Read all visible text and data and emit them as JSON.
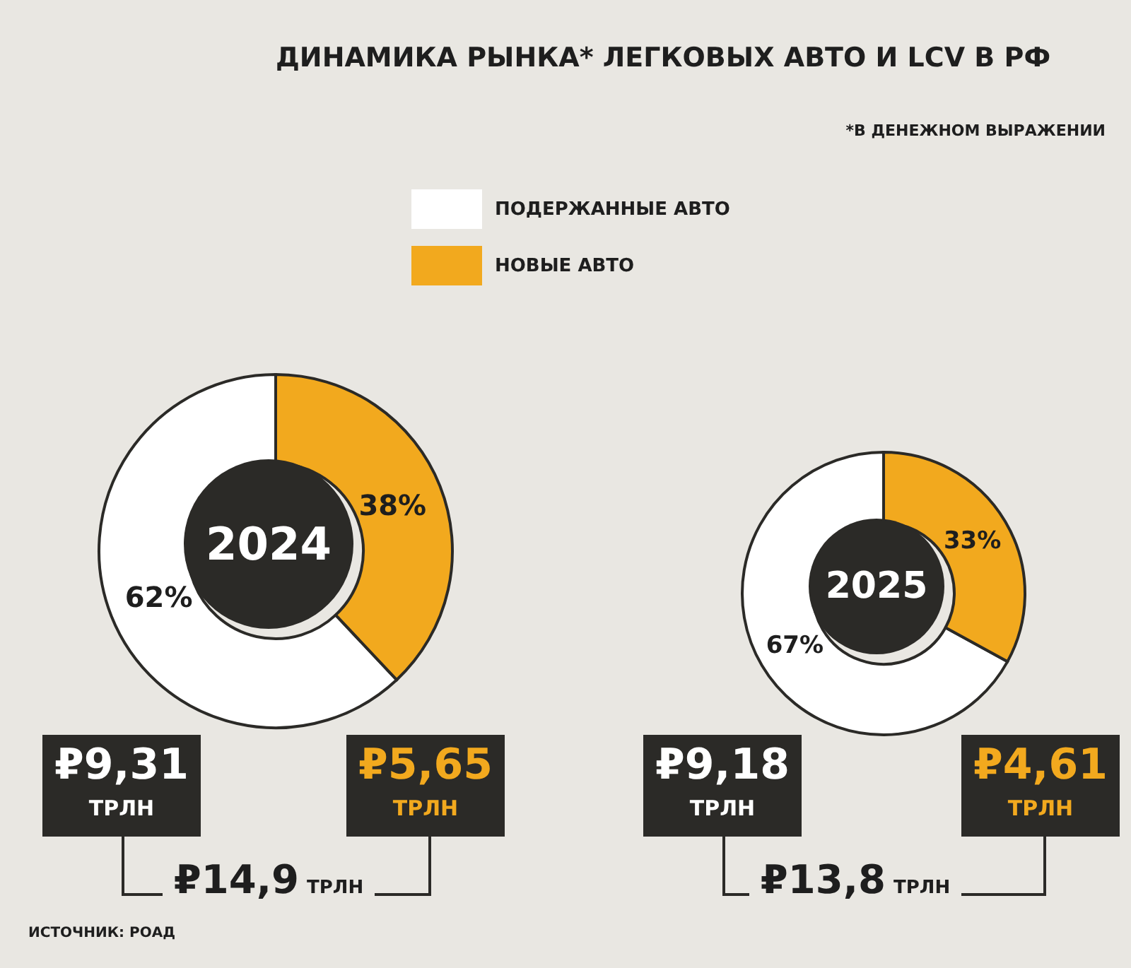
{
  "chart_data": [
    {
      "type": "donut",
      "title": "ДИНАМИКА РЫНКА* ЛЕГКОВЫХ АВТО И LCV В РФ",
      "subtitle": "*В ДЕНЕЖНОМ ВЫРАЖЕНИИ",
      "categories": [
        "ПОДЕРЖАННЫЕ АВТО",
        "НОВЫЕ АВТО"
      ],
      "values": [
        62,
        38
      ],
      "value_labels": [
        "62%",
        "38%"
      ],
      "colors": [
        "#ffffff",
        "#f2a91e"
      ],
      "legend": "top",
      "annotations": [
        "2024",
        "₽9,31 ТРЛН",
        "₽5,65 ТРЛН",
        "₽14,9 ТРЛН",
        "ИСТОЧНИК: РОАД"
      ]
    },
    {
      "type": "donut",
      "values": [
        67,
        33
      ],
      "value_labels": [
        "67%",
        "33%"
      ],
      "colors": [
        "#ffffff",
        "#f2a91e"
      ],
      "annotations": [
        "2025",
        "₽9,18 ТРЛН",
        "₽4,61 ТРЛН",
        "₽13,8 ТРЛН"
      ]
    }
  ]
}
